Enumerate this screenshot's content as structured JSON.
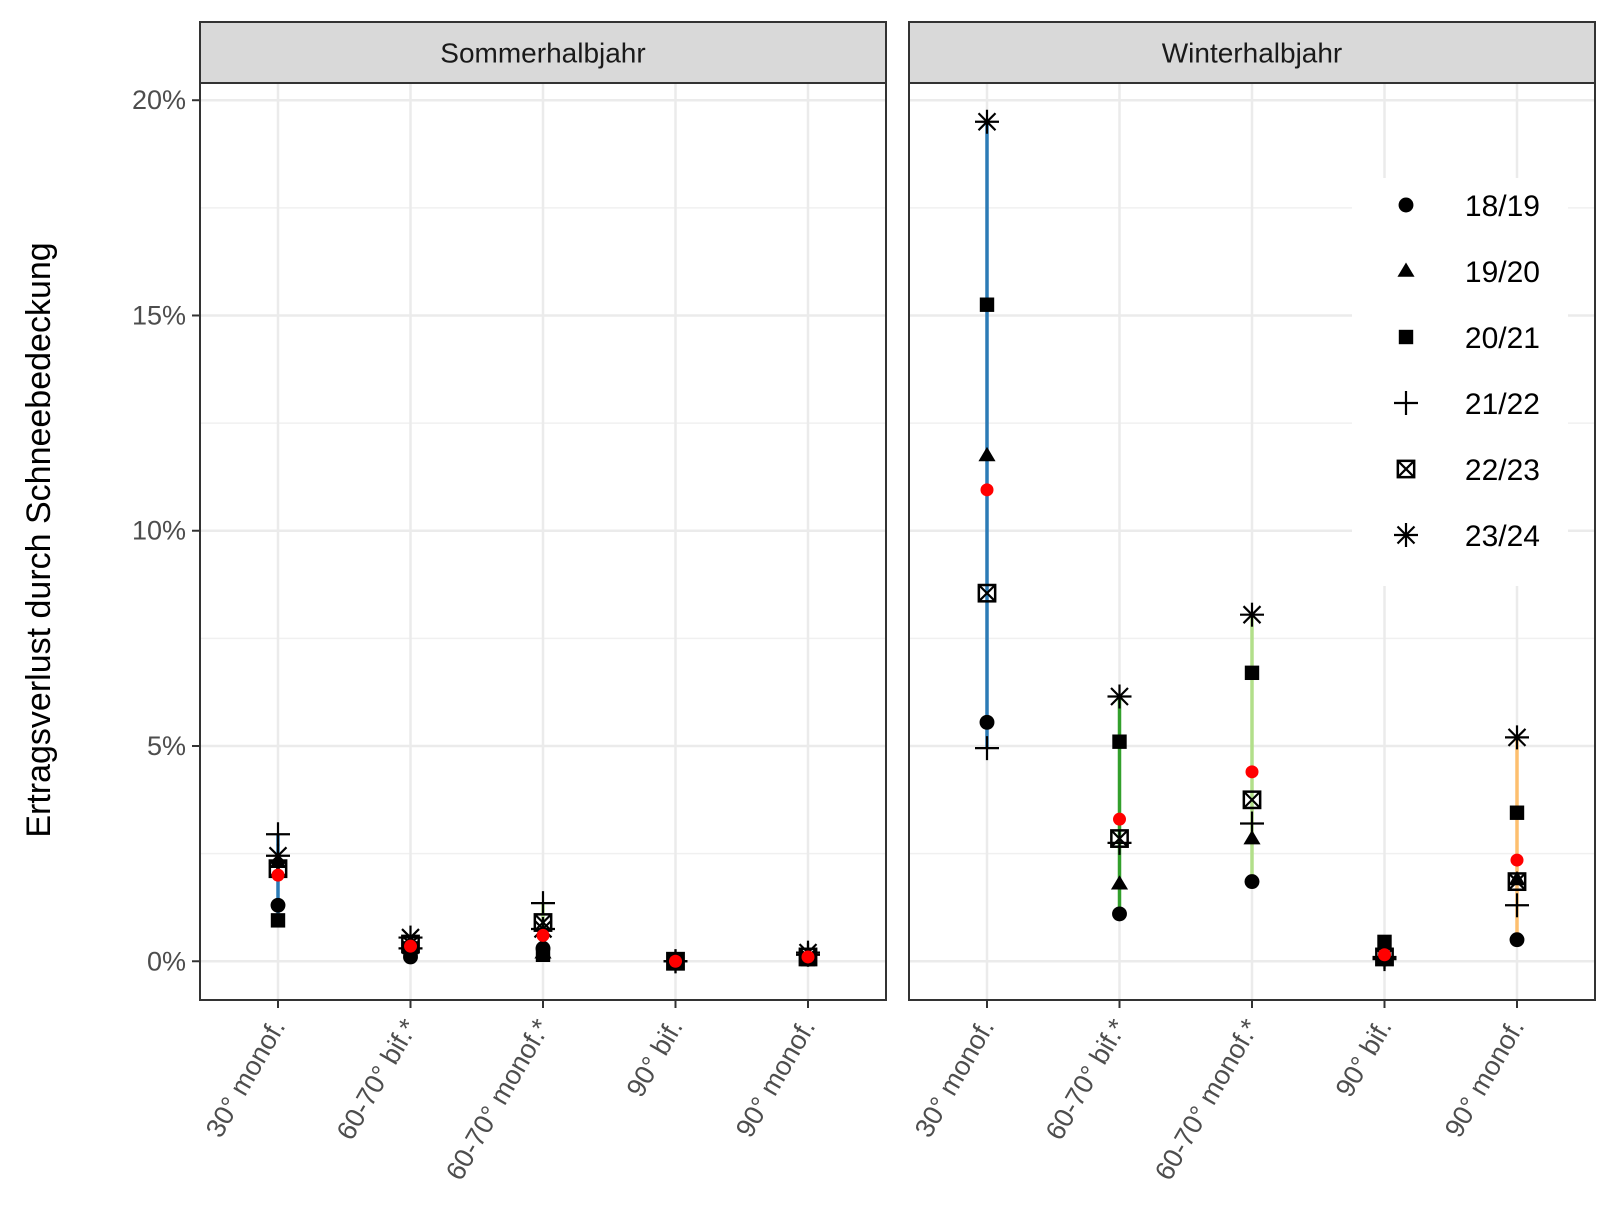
{
  "chart_data": {
    "type": "scatter",
    "ylabel": "Ertragsverlust durch Schneebedeckung",
    "xlabel": "",
    "ylim": [
      -0.9,
      20.4
    ],
    "yticks": [
      0,
      5,
      10,
      15,
      20
    ],
    "ytick_labels": [
      "0%",
      "5%",
      "10%",
      "15%",
      "20%"
    ],
    "grid": true,
    "legend_position": "right",
    "categories": [
      "30° monof.",
      "60-70° bif.*",
      "60-70° monof.*",
      "90° bif.",
      "90° monof."
    ],
    "category_colors": [
      "#2c7bb6",
      "#33a02c",
      "#b2df8a",
      "#9e9e9e",
      "#fdbf6f"
    ],
    "mean_color": "#ff0000",
    "series": [
      {
        "name": "18/19",
        "symbol": "circle"
      },
      {
        "name": "19/20",
        "symbol": "triangle"
      },
      {
        "name": "20/21",
        "symbol": "square"
      },
      {
        "name": "21/22",
        "symbol": "plus"
      },
      {
        "name": "22/23",
        "symbol": "boxx"
      },
      {
        "name": "23/24",
        "symbol": "asterisk"
      }
    ],
    "panels": [
      {
        "title": "Sommerhalbjahr",
        "mean": [
          2.0,
          0.35,
          0.6,
          0.0,
          0.1
        ],
        "values": [
          [
            1.3,
            0.1,
            0.3,
            0.0,
            0.05
          ],
          [
            2.3,
            0.3,
            0.2,
            0.0,
            0.1
          ],
          [
            0.95,
            0.3,
            0.15,
            0.0,
            0.05
          ],
          [
            2.95,
            0.3,
            1.35,
            0.0,
            0.15
          ],
          [
            2.15,
            0.4,
            0.9,
            0.0,
            0.1
          ],
          [
            2.45,
            0.55,
            0.75,
            0.0,
            0.2
          ]
        ]
      },
      {
        "title": "Winterhalbjahr",
        "mean": [
          10.95,
          3.3,
          4.4,
          0.15,
          2.35
        ],
        "values": [
          [
            5.55,
            1.1,
            1.85,
            0.05,
            0.5
          ],
          [
            11.75,
            1.8,
            2.85,
            0.1,
            1.9
          ],
          [
            15.25,
            5.1,
            6.7,
            0.45,
            3.45
          ],
          [
            4.95,
            2.75,
            3.2,
            0.05,
            1.3
          ],
          [
            8.55,
            2.85,
            3.75,
            0.1,
            1.85
          ],
          [
            19.5,
            6.15,
            8.05,
            0.1,
            5.2
          ]
        ]
      }
    ]
  }
}
